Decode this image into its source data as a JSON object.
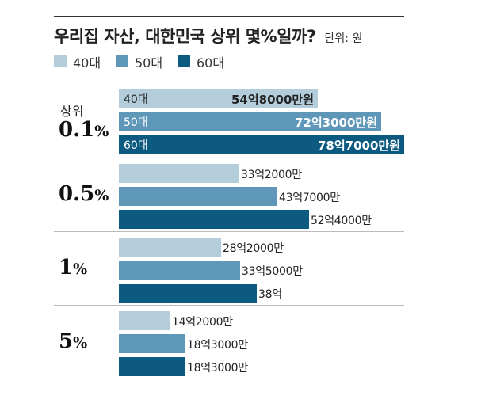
{
  "header": {
    "title": "우리집 자산, 대한민국 상위 몇%일까?",
    "unit": "단위: 원"
  },
  "colors": {
    "age40": "#b3cddb",
    "age50": "#5e97b8",
    "age60": "#0d5a80"
  },
  "chart_data": {
    "type": "bar",
    "orientation": "horizontal",
    "unit": "원",
    "categories": [
      {
        "prefix": "상위",
        "num": "0.1",
        "pct": "%"
      },
      {
        "prefix": "",
        "num": "0.5",
        "pct": "%"
      },
      {
        "prefix": "",
        "num": "1",
        "pct": "%"
      },
      {
        "prefix": "",
        "num": "5",
        "pct": "%"
      }
    ],
    "legend": {
      "position": "top-left"
    },
    "series": [
      {
        "name": "40대",
        "color": "#b3cddb",
        "values": [
          548000,
          332000,
          282000,
          142000
        ],
        "labels": [
          "54억8000만원",
          "33억2000만",
          "28억2000만",
          "14억2000만"
        ]
      },
      {
        "name": "50대",
        "color": "#5e97b8",
        "values": [
          723000,
          437000,
          335000,
          183000
        ],
        "labels": [
          "72억3000만원",
          "43억7000만",
          "33억5000만",
          "18억3000만"
        ]
      },
      {
        "name": "60대",
        "color": "#0d5a80",
        "values": [
          787000,
          524000,
          380000,
          183000
        ],
        "labels": [
          "78억7000만원",
          "52억4000만",
          "38억",
          "18억3000만"
        ]
      }
    ]
  }
}
